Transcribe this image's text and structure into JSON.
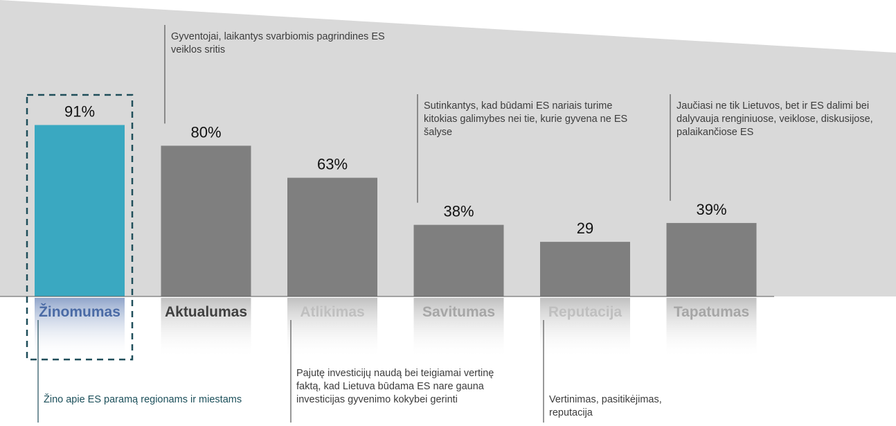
{
  "chart_data": {
    "type": "bar",
    "categories": [
      "Žinomumas",
      "Aktualumas",
      "Atlikimas",
      "Savitumas",
      "Reputacija",
      "Tapatumas"
    ],
    "values": [
      91,
      80,
      63,
      38,
      29,
      39
    ],
    "value_labels": [
      "91%",
      "80%",
      "63%",
      "38%",
      "29",
      "39%"
    ],
    "ylim": [
      0,
      100
    ],
    "title": "",
    "xlabel": "",
    "ylabel": "",
    "grid": false,
    "annotations": [
      {
        "category": "Aktualumas",
        "position": "above",
        "text": "Gyventojai, laikantys svarbiomis pagrindines ES veiklos sritis"
      },
      {
        "category": "Savitumas",
        "position": "above",
        "text": "Sutinkantys, kad būdami ES nariais turime kitokias galimybes nei tie, kurie gyvena ne ES šalyse"
      },
      {
        "category": "Tapatumas",
        "position": "above",
        "text": "Jaučiasi ne tik Lietuvos, bet ir ES dalimi bei dalyvauja renginiuose, veiklose, diskusijose, palaikančiose ES"
      },
      {
        "category": "Žinomumas",
        "position": "below",
        "text": "Žino apie ES paramą regionams ir miestams"
      },
      {
        "category": "Atlikimas",
        "position": "below",
        "text": "Pajutę investicijų naudą bei teigiamai vertinę faktą, kad Lietuva būdama ES nare gauna investicijas gyvenimo kokybei gerinti"
      },
      {
        "category": "Reputacija",
        "position": "below",
        "text": "Vertinimas, pasitikėjimas, reputacija"
      }
    ]
  },
  "colors": {
    "highlight_bar": "#3aa8c1",
    "bar": "#7f7f7f",
    "background_band": "#d9d9d9",
    "highlight_label": "#4a6aa5",
    "dark_label": "#404040",
    "muted_label": "#bfbfbf",
    "gray_label": "#a6a6a6",
    "dashed_box": "#1f4e5a"
  }
}
